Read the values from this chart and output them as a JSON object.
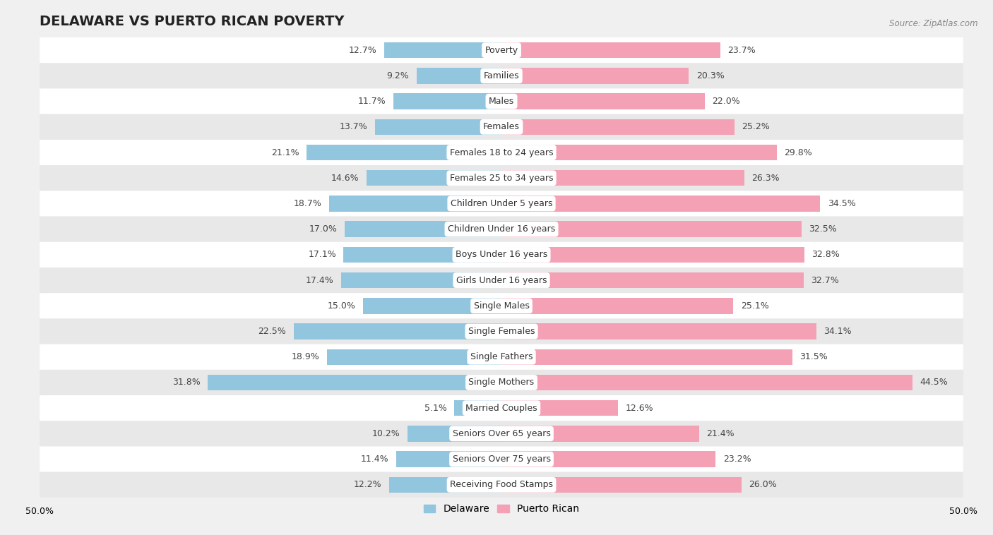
{
  "title": "DELAWARE VS PUERTO RICAN POVERTY",
  "source": "Source: ZipAtlas.com",
  "categories": [
    "Poverty",
    "Families",
    "Males",
    "Females",
    "Females 18 to 24 years",
    "Females 25 to 34 years",
    "Children Under 5 years",
    "Children Under 16 years",
    "Boys Under 16 years",
    "Girls Under 16 years",
    "Single Males",
    "Single Females",
    "Single Fathers",
    "Single Mothers",
    "Married Couples",
    "Seniors Over 65 years",
    "Seniors Over 75 years",
    "Receiving Food Stamps"
  ],
  "delaware": [
    12.7,
    9.2,
    11.7,
    13.7,
    21.1,
    14.6,
    18.7,
    17.0,
    17.1,
    17.4,
    15.0,
    22.5,
    18.9,
    31.8,
    5.1,
    10.2,
    11.4,
    12.2
  ],
  "puerto_rican": [
    23.7,
    20.3,
    22.0,
    25.2,
    29.8,
    26.3,
    34.5,
    32.5,
    32.8,
    32.7,
    25.1,
    34.1,
    31.5,
    44.5,
    12.6,
    21.4,
    23.2,
    26.0
  ],
  "delaware_color": "#92c5de",
  "puerto_rican_color": "#f4a0b5",
  "background_color": "#f0f0f0",
  "row_bg_light": "#ffffff",
  "row_bg_dark": "#e8e8e8",
  "axis_max": 50.0,
  "bar_height": 0.62,
  "title_fontsize": 14,
  "label_fontsize": 9,
  "value_fontsize": 9,
  "legend_fontsize": 10
}
